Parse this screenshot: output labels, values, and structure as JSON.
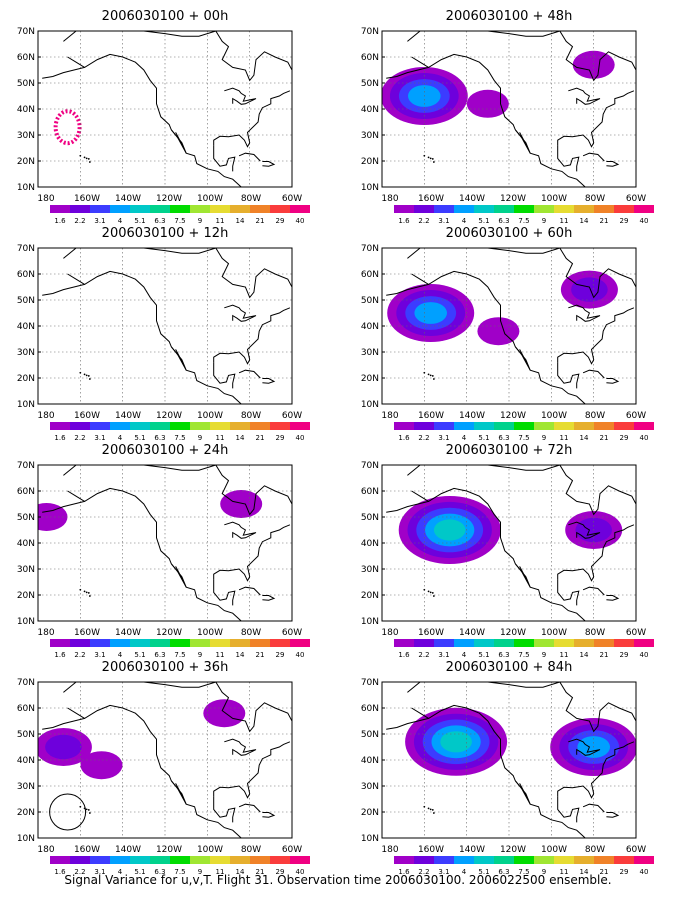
{
  "figure": {
    "caption": "Signal Variance for u,v,T. Flight 31. Observation time 2006030100. 2006022500 ensemble."
  },
  "legend": {
    "labels": [
      "1.6",
      "2.2",
      "3.1",
      "4",
      "5.1",
      "6.3",
      "7.5",
      "9",
      "11",
      "14",
      "21",
      "29",
      "40"
    ],
    "colors": [
      "#a000c8",
      "#6e00dc",
      "#3c3cff",
      "#00a0ff",
      "#00c8c8",
      "#00d28c",
      "#00dc00",
      "#a0e632",
      "#e6dc32",
      "#e6af2d",
      "#f08228",
      "#fa3c3c",
      "#f00082"
    ]
  },
  "axes": {
    "x_ticks": [
      "180",
      "160W",
      "140W",
      "120W",
      "100W",
      "80W",
      "60W"
    ],
    "y_ticks": [
      "10N",
      "20N",
      "30N",
      "40N",
      "50N",
      "60N",
      "70N"
    ]
  },
  "chart_data": [
    {
      "type": "heatmap",
      "title": "2006030100 + 00h",
      "xlim": [
        -180,
        -60
      ],
      "ylim": [
        10,
        70
      ],
      "features": [
        {
          "kind": "dotted_ring",
          "lon": -166,
          "lat": 33,
          "level": "40"
        }
      ]
    },
    {
      "type": "heatmap",
      "title": "2006030100 + 48h",
      "xlim": [
        -180,
        -60
      ],
      "ylim": [
        10,
        70
      ],
      "features": [
        {
          "kind": "blob",
          "lon": -160,
          "lat": 45,
          "peak": "4"
        },
        {
          "kind": "blob",
          "lon": -130,
          "lat": 42,
          "peak": "1.6"
        },
        {
          "kind": "blob",
          "lon": -80,
          "lat": 57,
          "peak": "1.6"
        }
      ]
    },
    {
      "type": "heatmap",
      "title": "2006030100 + 12h",
      "xlim": [
        -180,
        -60
      ],
      "ylim": [
        10,
        70
      ],
      "features": []
    },
    {
      "type": "heatmap",
      "title": "2006030100 + 60h",
      "xlim": [
        -180,
        -60
      ],
      "ylim": [
        10,
        70
      ],
      "features": [
        {
          "kind": "blob",
          "lon": -157,
          "lat": 45,
          "peak": "4"
        },
        {
          "kind": "blob",
          "lon": -125,
          "lat": 38,
          "peak": "1.6"
        },
        {
          "kind": "blob",
          "lon": -82,
          "lat": 54,
          "peak": "2.2"
        }
      ]
    },
    {
      "type": "heatmap",
      "title": "2006030100 + 24h",
      "xlim": [
        -180,
        -60
      ],
      "ylim": [
        10,
        70
      ],
      "features": [
        {
          "kind": "blob",
          "lon": -176,
          "lat": 50,
          "peak": "1.6"
        },
        {
          "kind": "blob",
          "lon": -84,
          "lat": 55,
          "peak": "1.6"
        }
      ]
    },
    {
      "type": "heatmap",
      "title": "2006030100 + 72h",
      "xlim": [
        -180,
        -60
      ],
      "ylim": [
        10,
        70
      ],
      "features": [
        {
          "kind": "blob",
          "lon": -148,
          "lat": 45,
          "peak": "5.1"
        },
        {
          "kind": "blob",
          "lon": -80,
          "lat": 45,
          "peak": "2.2"
        }
      ]
    },
    {
      "type": "heatmap",
      "title": "2006030100 + 36h",
      "xlim": [
        -180,
        -60
      ],
      "ylim": [
        10,
        70
      ],
      "features": [
        {
          "kind": "blob",
          "lon": -168,
          "lat": 45,
          "peak": "2.2"
        },
        {
          "kind": "blob",
          "lon": -150,
          "lat": 38,
          "peak": "1.6"
        },
        {
          "kind": "blob",
          "lon": -92,
          "lat": 58,
          "peak": "1.6"
        },
        {
          "kind": "contour",
          "lon": -166,
          "lat": 20
        }
      ]
    },
    {
      "type": "heatmap",
      "title": "2006030100 + 84h",
      "xlim": [
        -180,
        -60
      ],
      "ylim": [
        10,
        70
      ],
      "features": [
        {
          "kind": "blob",
          "lon": -145,
          "lat": 47,
          "peak": "5.1"
        },
        {
          "kind": "blob",
          "lon": -80,
          "lat": 45,
          "peak": "4"
        }
      ]
    }
  ]
}
